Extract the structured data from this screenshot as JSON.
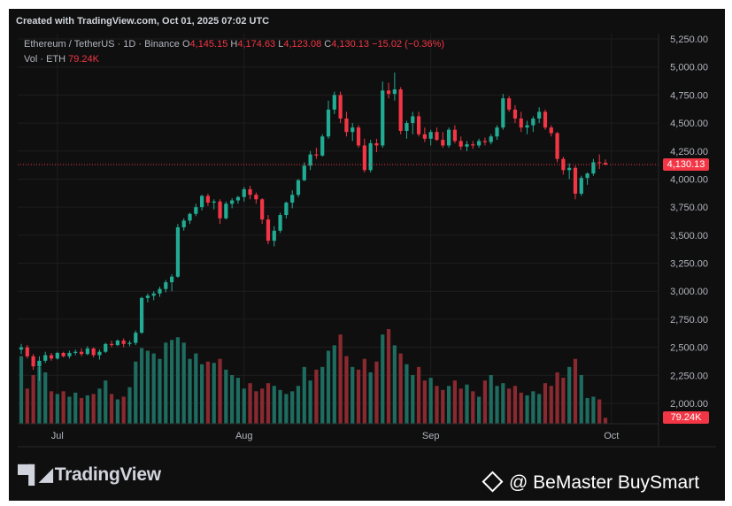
{
  "header": {
    "created": "Created with TradingView.com, Oct 01, 2025 07:02 UTC"
  },
  "legend": {
    "symbol": "Ethereum / TetherUS · 1D · Binance",
    "o_label": "O",
    "o": "4,145.15",
    "h_label": "H",
    "h": "4,174.63",
    "l_label": "L",
    "l": "4,123.08",
    "c_label": "C",
    "c": "4,130.13",
    "change": "−15.02 (−0.36%)",
    "vol_label": "Vol · ETH",
    "vol": "79.24K"
  },
  "price_tag": "4,130.13",
  "vol_tag": "79.24K",
  "logo_text": "TradingView",
  "watermark": "@ BeMaster BuySmart",
  "colors": {
    "up": "#22ab94",
    "down": "#f23645",
    "vol_up": "#1e6b5f",
    "vol_down": "#8a2a30",
    "background": "#0f0f0f",
    "grid": "#1e1e1e"
  },
  "chart_data": {
    "type": "candlestick",
    "y_ticks": [
      "5,250.00",
      "5,000.00",
      "4,750.00",
      "4,500.00",
      "4,250.00",
      "4,000.00",
      "3,750.00",
      "3,500.00",
      "3,250.00",
      "3,000.00",
      "2,750.00",
      "2,500.00",
      "2,250.00",
      "2,000.00"
    ],
    "y_range": [
      1850,
      5300
    ],
    "x_ticks": [
      "Jul",
      "Aug",
      "Sep",
      "Oct"
    ],
    "last_price": 4130.13,
    "ohlc": [
      [
        2480,
        2530,
        2440,
        2500
      ],
      [
        2500,
        2520,
        2400,
        2420
      ],
      [
        2420,
        2440,
        2300,
        2330
      ],
      [
        2330,
        2420,
        2200,
        2380
      ],
      [
        2380,
        2460,
        2360,
        2430
      ],
      [
        2430,
        2450,
        2380,
        2400
      ],
      [
        2400,
        2460,
        2390,
        2450
      ],
      [
        2450,
        2460,
        2410,
        2420
      ],
      [
        2420,
        2470,
        2400,
        2450
      ],
      [
        2450,
        2480,
        2430,
        2460
      ],
      [
        2460,
        2490,
        2420,
        2440
      ],
      [
        2440,
        2510,
        2430,
        2490
      ],
      [
        2490,
        2500,
        2410,
        2430
      ],
      [
        2430,
        2480,
        2390,
        2460
      ],
      [
        2460,
        2540,
        2450,
        2530
      ],
      [
        2530,
        2560,
        2500,
        2520
      ],
      [
        2520,
        2570,
        2510,
        2560
      ],
      [
        2560,
        2580,
        2500,
        2530
      ],
      [
        2530,
        2560,
        2510,
        2540
      ],
      [
        2540,
        2650,
        2520,
        2630
      ],
      [
        2630,
        2950,
        2620,
        2940
      ],
      [
        2940,
        2980,
        2900,
        2960
      ],
      [
        2960,
        3000,
        2920,
        2980
      ],
      [
        2980,
        3040,
        2950,
        3020
      ],
      [
        3020,
        3100,
        2990,
        3080
      ],
      [
        3080,
        3150,
        3000,
        3130
      ],
      [
        3130,
        3600,
        3120,
        3570
      ],
      [
        3570,
        3650,
        3540,
        3630
      ],
      [
        3630,
        3700,
        3600,
        3690
      ],
      [
        3690,
        3780,
        3670,
        3750
      ],
      [
        3750,
        3860,
        3720,
        3850
      ],
      [
        3850,
        3870,
        3760,
        3790
      ],
      [
        3790,
        3820,
        3730,
        3800
      ],
      [
        3800,
        3820,
        3600,
        3650
      ],
      [
        3650,
        3800,
        3640,
        3780
      ],
      [
        3780,
        3830,
        3740,
        3810
      ],
      [
        3810,
        3850,
        3780,
        3840
      ],
      [
        3840,
        3930,
        3800,
        3910
      ],
      [
        3910,
        3940,
        3820,
        3860
      ],
      [
        3860,
        3880,
        3780,
        3820
      ],
      [
        3820,
        3830,
        3600,
        3640
      ],
      [
        3640,
        3680,
        3420,
        3450
      ],
      [
        3450,
        3580,
        3400,
        3540
      ],
      [
        3540,
        3700,
        3520,
        3680
      ],
      [
        3680,
        3800,
        3650,
        3790
      ],
      [
        3790,
        3900,
        3740,
        3860
      ],
      [
        3860,
        4000,
        3840,
        3990
      ],
      [
        3990,
        4150,
        3980,
        4120
      ],
      [
        4120,
        4250,
        4080,
        4220
      ],
      [
        4220,
        4280,
        4180,
        4210
      ],
      [
        4210,
        4400,
        4200,
        4380
      ],
      [
        4380,
        4700,
        4360,
        4620
      ],
      [
        4620,
        4780,
        4580,
        4750
      ],
      [
        4750,
        4780,
        4500,
        4540
      ],
      [
        4540,
        4600,
        4380,
        4420
      ],
      [
        4420,
        4500,
        4340,
        4460
      ],
      [
        4460,
        4480,
        4280,
        4300
      ],
      [
        4300,
        4360,
        4060,
        4080
      ],
      [
        4080,
        4350,
        4060,
        4320
      ],
      [
        4320,
        4360,
        4240,
        4300
      ],
      [
        4300,
        4870,
        4280,
        4790
      ],
      [
        4790,
        4860,
        4720,
        4760
      ],
      [
        4760,
        4950,
        4700,
        4800
      ],
      [
        4800,
        4820,
        4400,
        4430
      ],
      [
        4430,
        4520,
        4360,
        4500
      ],
      [
        4500,
        4600,
        4400,
        4560
      ],
      [
        4560,
        4600,
        4380,
        4400
      ],
      [
        4400,
        4460,
        4330,
        4360
      ],
      [
        4360,
        4440,
        4300,
        4420
      ],
      [
        4420,
        4460,
        4340,
        4350
      ],
      [
        4350,
        4420,
        4280,
        4300
      ],
      [
        4300,
        4460,
        4280,
        4440
      ],
      [
        4440,
        4480,
        4320,
        4340
      ],
      [
        4340,
        4380,
        4260,
        4290
      ],
      [
        4290,
        4340,
        4250,
        4310
      ],
      [
        4310,
        4340,
        4270,
        4300
      ],
      [
        4300,
        4360,
        4280,
        4340
      ],
      [
        4340,
        4370,
        4300,
        4330
      ],
      [
        4330,
        4400,
        4310,
        4380
      ],
      [
        4380,
        4480,
        4350,
        4460
      ],
      [
        4460,
        4760,
        4440,
        4720
      ],
      [
        4720,
        4740,
        4600,
        4620
      ],
      [
        4620,
        4660,
        4500,
        4540
      ],
      [
        4540,
        4600,
        4420,
        4460
      ],
      [
        4460,
        4520,
        4400,
        4480
      ],
      [
        4480,
        4560,
        4420,
        4540
      ],
      [
        4540,
        4640,
        4500,
        4600
      ],
      [
        4600,
        4620,
        4440,
        4460
      ],
      [
        4460,
        4480,
        4380,
        4410
      ],
      [
        4410,
        4420,
        4150,
        4180
      ],
      [
        4180,
        4200,
        4040,
        4080
      ],
      [
        4080,
        4140,
        4000,
        4100
      ],
      [
        4100,
        4120,
        3820,
        3870
      ],
      [
        3870,
        4030,
        3850,
        4010
      ],
      [
        4010,
        4060,
        3950,
        4050
      ],
      [
        4050,
        4180,
        4030,
        4150
      ],
      [
        4150,
        4220,
        4090,
        4145
      ],
      [
        4145,
        4175,
        4123,
        4130
      ]
    ],
    "volume": [
      250,
      130,
      180,
      210,
      190,
      120,
      110,
      120,
      100,
      115,
      95,
      105,
      110,
      130,
      160,
      110,
      90,
      100,
      135,
      230,
      280,
      270,
      260,
      240,
      300,
      310,
      320,
      300,
      240,
      260,
      220,
      230,
      225,
      240,
      200,
      180,
      170,
      130,
      150,
      120,
      130,
      150,
      140,
      125,
      110,
      120,
      140,
      210,
      160,
      200,
      210,
      270,
      290,
      330,
      250,
      210,
      200,
      240,
      190,
      230,
      330,
      350,
      290,
      260,
      220,
      180,
      210,
      160,
      170,
      140,
      125,
      140,
      160,
      130,
      145,
      120,
      100,
      160,
      180,
      140,
      150,
      130,
      140,
      115,
      105,
      120,
      110,
      150,
      140,
      190,
      170,
      210,
      240,
      180,
      95,
      100,
      90,
      22
    ]
  }
}
